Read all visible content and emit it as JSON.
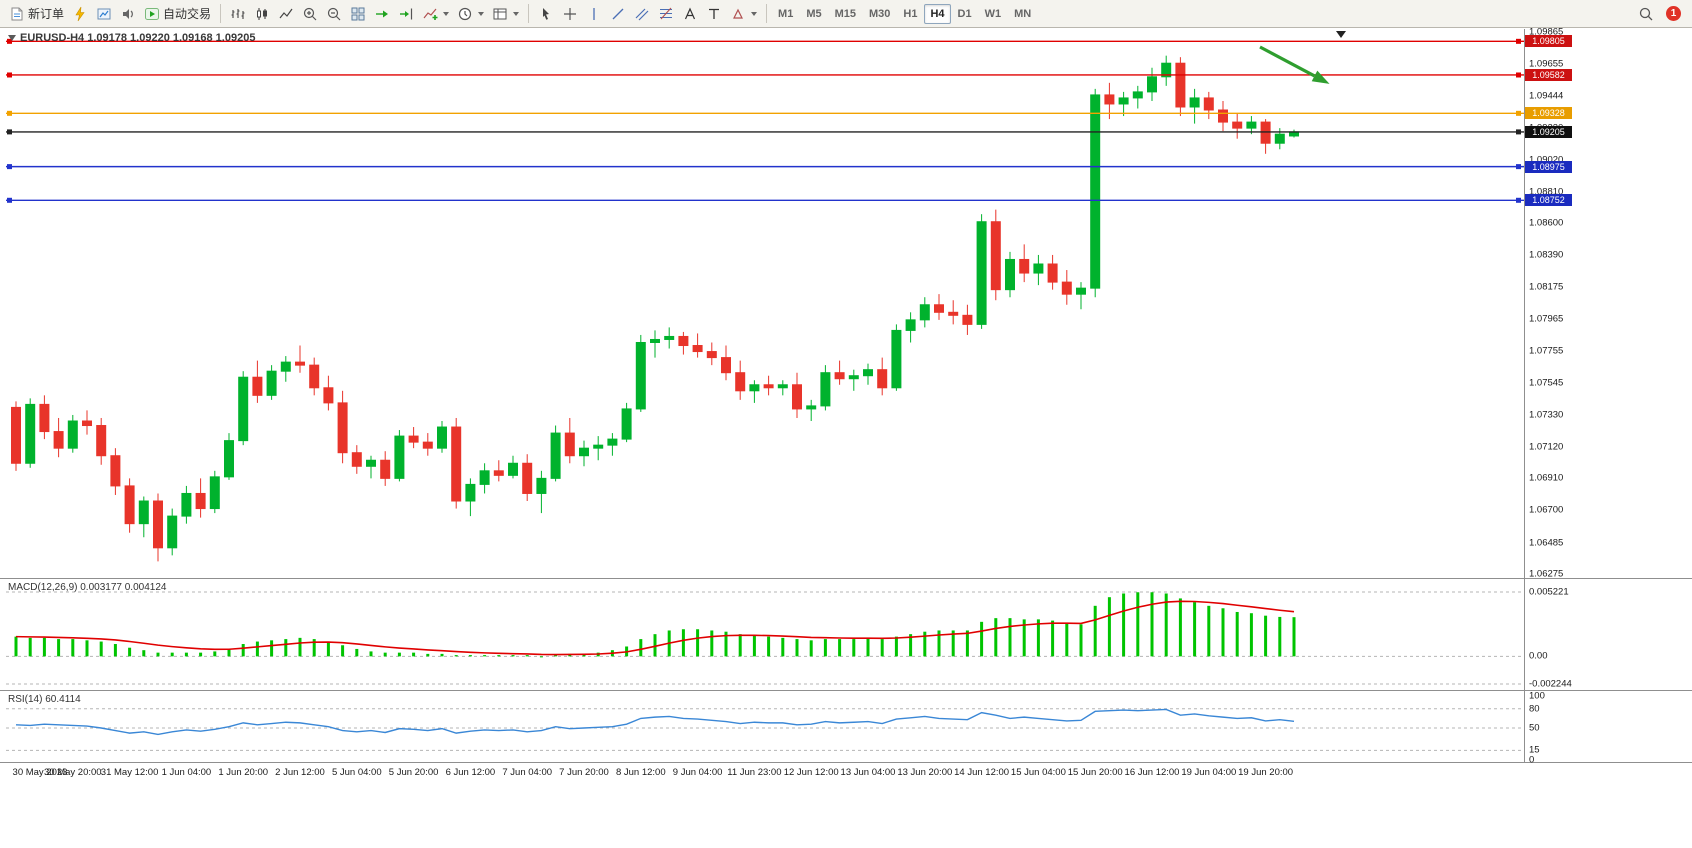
{
  "toolbar": {
    "new_order_label": "新订单",
    "auto_trading_label": "自动交易",
    "timeframes": [
      "M1",
      "M5",
      "M15",
      "M30",
      "H1",
      "H4",
      "D1",
      "W1",
      "MN"
    ],
    "active_timeframe": "H4",
    "notification_count": "1"
  },
  "chart": {
    "title": "EURUSD-H4 1.09178 1.09220 1.09168 1.09205",
    "symbol": "EURUSD",
    "timeframe": "H4",
    "open": "1.09178",
    "high": "1.09220",
    "low": "1.09168",
    "close": "1.09205"
  },
  "price_axis": {
    "labels": [
      "1.09865",
      "1.09655",
      "1.09444",
      "1.09230",
      "1.09020",
      "1.08810",
      "1.08600",
      "1.08390",
      "1.08175",
      "1.07965",
      "1.07755",
      "1.07545",
      "1.07330",
      "1.07120",
      "1.06910",
      "1.06700",
      "1.06485",
      "1.06275"
    ]
  },
  "hlines": [
    {
      "label": "1.09805",
      "value": 1.09805,
      "line_color": "#e00000",
      "tag_color": "#cc1111"
    },
    {
      "label": "1.09582",
      "value": 1.09582,
      "line_color": "#e00000",
      "tag_color": "#cc1111"
    },
    {
      "label": "1.09328",
      "value": 1.09328,
      "line_color": "#f2a200",
      "tag_color": "#e89d00"
    },
    {
      "label": "1.09205",
      "value": 1.09205,
      "line_color": "#222222",
      "tag_color": "#101010"
    },
    {
      "label": "1.08975",
      "value": 1.08975,
      "line_color": "#2233cc",
      "tag_color": "#1a2bbf"
    },
    {
      "label": "1.08752",
      "value": 1.08752,
      "line_color": "#2233cc",
      "tag_color": "#1a2bbf"
    }
  ],
  "arrow": {
    "color": "#2f9e2f"
  },
  "macd": {
    "label": "MACD(12,26,9) 0.003177 0.004124",
    "axis_labels": [
      "0.005221",
      "0.00",
      "-0.002244"
    ],
    "axis_values": [
      0.005221,
      0,
      -0.002244
    ],
    "histogram_color": "#00c400",
    "signal_color": "#e00000",
    "values": [
      0.0016,
      0.0015,
      0.0015,
      0.0014,
      0.0014,
      0.0013,
      0.0012,
      0.001,
      0.0007,
      0.0005,
      0.0003,
      0.0003,
      0.0003,
      0.0003,
      0.0004,
      0.0006,
      0.001,
      0.0012,
      0.0013,
      0.0014,
      0.0015,
      0.0014,
      0.0012,
      0.0009,
      0.0006,
      0.0004,
      0.0003,
      0.0003,
      0.0003,
      0.0002,
      0.0002,
      0.0001,
      0.0001,
      0.0001,
      0.0001,
      0.0001,
      0.0001,
      0.0,
      0.0001,
      0.0002,
      0.0002,
      0.0003,
      0.0005,
      0.0008,
      0.0014,
      0.0018,
      0.0021,
      0.0022,
      0.0022,
      0.0021,
      0.002,
      0.0018,
      0.0017,
      0.0016,
      0.0015,
      0.0014,
      0.0013,
      0.0014,
      0.0014,
      0.0014,
      0.0015,
      0.0014,
      0.0016,
      0.0018,
      0.002,
      0.0021,
      0.0021,
      0.0021,
      0.0028,
      0.0031,
      0.0031,
      0.003,
      0.003,
      0.0029,
      0.0027,
      0.0026,
      0.0041,
      0.0048,
      0.0051,
      0.0052,
      0.0052,
      0.0051,
      0.0047,
      0.0044,
      0.0041,
      0.0039,
      0.0036,
      0.0035,
      0.0033,
      0.0032,
      0.003177
    ]
  },
  "rsi": {
    "label": "RSI(14) 60.4114",
    "axis_labels": [
      "100",
      "80",
      "50",
      "15",
      "0"
    ],
    "axis_values": [
      100,
      80,
      50,
      15,
      0
    ],
    "levels": [
      80,
      50,
      15
    ],
    "line_color": "#3a87d6",
    "values": [
      55,
      54,
      56,
      55,
      54,
      53,
      50,
      46,
      42,
      44,
      40,
      44,
      47,
      45,
      48,
      52,
      58,
      55,
      57,
      59,
      58,
      55,
      52,
      46,
      44,
      46,
      43,
      49,
      48,
      46,
      49,
      42,
      45,
      47,
      46,
      47,
      44,
      46,
      52,
      49,
      50,
      51,
      52,
      56,
      65,
      67,
      68,
      65,
      64,
      62,
      60,
      57,
      59,
      58,
      58,
      55,
      56,
      60,
      58,
      59,
      60,
      57,
      64,
      66,
      68,
      65,
      64,
      63,
      74,
      70,
      65,
      67,
      65,
      63,
      61,
      62,
      76,
      77,
      78,
      77,
      78,
      79,
      70,
      72,
      69,
      67,
      65,
      66,
      61,
      63,
      60.41
    ]
  },
  "time_axis": [
    "30 May 2023",
    "30 May 20:00",
    "31 May 12:00",
    "1 Jun 04:00",
    "1 Jun 20:00",
    "2 Jun 12:00",
    "5 Jun 04:00",
    "5 Jun 20:00",
    "6 Jun 12:00",
    "7 Jun 04:00",
    "7 Jun 20:00",
    "8 Jun 12:00",
    "9 Jun 04:00",
    "11 Jun 23:00",
    "12 Jun 12:00",
    "13 Jun 04:00",
    "13 Jun 20:00",
    "14 Jun 12:00",
    "15 Jun 04:00",
    "15 Jun 20:00",
    "16 Jun 12:00",
    "19 Jun 04:00",
    "19 Jun 20:00"
  ],
  "chart_data": {
    "type": "candlestick",
    "title": "EURUSD H4",
    "ylim": [
      1.0625,
      1.0988
    ],
    "colors": {
      "up": "#00b22d",
      "down": "#e8342a"
    },
    "candles": [
      [
        1.0738,
        1.0742,
        1.0696,
        1.0701
      ],
      [
        1.0701,
        1.0744,
        1.0698,
        1.074
      ],
      [
        1.074,
        1.0746,
        1.0717,
        1.0722
      ],
      [
        1.0722,
        1.0731,
        1.0705,
        1.0711
      ],
      [
        1.0711,
        1.0733,
        1.0708,
        1.0729
      ],
      [
        1.0729,
        1.0736,
        1.072,
        1.0726
      ],
      [
        1.0726,
        1.0731,
        1.07,
        1.0706
      ],
      [
        1.0706,
        1.0711,
        1.068,
        1.0686
      ],
      [
        1.0686,
        1.0691,
        1.0655,
        1.0661
      ],
      [
        1.0661,
        1.0679,
        1.0652,
        1.0676
      ],
      [
        1.0676,
        1.0681,
        1.0636,
        1.0645
      ],
      [
        1.0645,
        1.0671,
        1.064,
        1.0666
      ],
      [
        1.0666,
        1.0686,
        1.0661,
        1.0681
      ],
      [
        1.0681,
        1.0691,
        1.0665,
        1.0671
      ],
      [
        1.0671,
        1.0696,
        1.0668,
        1.0692
      ],
      [
        1.0692,
        1.0721,
        1.069,
        1.0716
      ],
      [
        1.0716,
        1.0762,
        1.0713,
        1.0758
      ],
      [
        1.0758,
        1.0769,
        1.0741,
        1.0746
      ],
      [
        1.0746,
        1.0766,
        1.0743,
        1.0762
      ],
      [
        1.0762,
        1.0772,
        1.0755,
        1.0768
      ],
      [
        1.0768,
        1.0779,
        1.0761,
        1.0766
      ],
      [
        1.0766,
        1.0771,
        1.0746,
        1.0751
      ],
      [
        1.0751,
        1.0759,
        1.0736,
        1.0741
      ],
      [
        1.0741,
        1.0749,
        1.0701,
        1.0708
      ],
      [
        1.0708,
        1.0713,
        1.0694,
        1.0699
      ],
      [
        1.0699,
        1.0706,
        1.0691,
        1.0703
      ],
      [
        1.0703,
        1.0709,
        1.0686,
        1.0691
      ],
      [
        1.0691,
        1.0723,
        1.0689,
        1.0719
      ],
      [
        1.0719,
        1.0725,
        1.0711,
        1.0715
      ],
      [
        1.0715,
        1.0721,
        1.0706,
        1.0711
      ],
      [
        1.0711,
        1.0729,
        1.0708,
        1.0725
      ],
      [
        1.0725,
        1.0731,
        1.0671,
        1.0676
      ],
      [
        1.0676,
        1.0691,
        1.0666,
        1.0687
      ],
      [
        1.0687,
        1.0701,
        1.0681,
        1.0696
      ],
      [
        1.0696,
        1.0703,
        1.0689,
        1.0693
      ],
      [
        1.0693,
        1.0706,
        1.0691,
        1.0701
      ],
      [
        1.0701,
        1.0707,
        1.0676,
        1.0681
      ],
      [
        1.0681,
        1.0696,
        1.0668,
        1.0691
      ],
      [
        1.0691,
        1.0726,
        1.0689,
        1.0721
      ],
      [
        1.0721,
        1.0731,
        1.0701,
        1.0706
      ],
      [
        1.0706,
        1.0716,
        1.0699,
        1.0711
      ],
      [
        1.0711,
        1.0719,
        1.0703,
        1.0713
      ],
      [
        1.0713,
        1.0721,
        1.0706,
        1.0717
      ],
      [
        1.0717,
        1.0741,
        1.0715,
        1.0737
      ],
      [
        1.0737,
        1.0786,
        1.0735,
        1.0781
      ],
      [
        1.0781,
        1.0789,
        1.0771,
        1.0783
      ],
      [
        1.0783,
        1.0791,
        1.0777,
        1.0785
      ],
      [
        1.0785,
        1.0788,
        1.0773,
        1.0779
      ],
      [
        1.0779,
        1.0787,
        1.0771,
        1.0775
      ],
      [
        1.0775,
        1.0781,
        1.0766,
        1.0771
      ],
      [
        1.0771,
        1.0779,
        1.0756,
        1.0761
      ],
      [
        1.0761,
        1.0769,
        1.0743,
        1.0749
      ],
      [
        1.0749,
        1.0756,
        1.0741,
        1.0753
      ],
      [
        1.0753,
        1.0759,
        1.0746,
        1.0751
      ],
      [
        1.0751,
        1.0756,
        1.0746,
        1.0753
      ],
      [
        1.0753,
        1.0761,
        1.0731,
        1.0737
      ],
      [
        1.0737,
        1.0743,
        1.0729,
        1.0739
      ],
      [
        1.0739,
        1.0766,
        1.0736,
        1.0761
      ],
      [
        1.0761,
        1.0769,
        1.0753,
        1.0757
      ],
      [
        1.0757,
        1.0763,
        1.0749,
        1.0759
      ],
      [
        1.0759,
        1.0767,
        1.0753,
        1.0763
      ],
      [
        1.0763,
        1.0771,
        1.0746,
        1.0751
      ],
      [
        1.0751,
        1.0793,
        1.0749,
        1.0789
      ],
      [
        1.0789,
        1.0801,
        1.0781,
        1.0796
      ],
      [
        1.0796,
        1.0811,
        1.0791,
        1.0806
      ],
      [
        1.0806,
        1.0813,
        1.0796,
        1.0801
      ],
      [
        1.0801,
        1.0809,
        1.0793,
        1.0799
      ],
      [
        1.0799,
        1.0806,
        1.0786,
        1.0793
      ],
      [
        1.0793,
        1.0866,
        1.079,
        1.0861
      ],
      [
        1.0861,
        1.0869,
        1.0809,
        1.0816
      ],
      [
        1.0816,
        1.0841,
        1.0811,
        1.0836
      ],
      [
        1.0836,
        1.0846,
        1.0821,
        1.0827
      ],
      [
        1.0827,
        1.0839,
        1.0819,
        1.0833
      ],
      [
        1.0833,
        1.0839,
        1.0816,
        1.0821
      ],
      [
        1.0821,
        1.0829,
        1.0806,
        1.0813
      ],
      [
        1.0813,
        1.0821,
        1.0803,
        1.0817
      ],
      [
        1.0817,
        1.0949,
        1.0811,
        1.0945
      ],
      [
        1.0945,
        1.0953,
        1.0929,
        1.0939
      ],
      [
        1.0939,
        1.0947,
        1.0931,
        1.0943
      ],
      [
        1.0943,
        1.0951,
        1.0936,
        1.0947
      ],
      [
        1.0947,
        1.0963,
        1.0941,
        1.0957
      ],
      [
        1.0957,
        1.0971,
        1.0951,
        1.0966
      ],
      [
        1.0966,
        1.097,
        1.0931,
        1.0937
      ],
      [
        1.0937,
        1.0949,
        1.0926,
        1.0943
      ],
      [
        1.0943,
        1.0947,
        1.0929,
        1.0935
      ],
      [
        1.0935,
        1.0941,
        1.0921,
        1.0927
      ],
      [
        1.0927,
        1.0933,
        1.0916,
        1.0923
      ],
      [
        1.0923,
        1.0931,
        1.0919,
        1.0927
      ],
      [
        1.0927,
        1.0929,
        1.0906,
        1.0913
      ],
      [
        1.0913,
        1.0923,
        1.0909,
        1.0919
      ],
      [
        1.09178,
        1.0922,
        1.09168,
        1.09205
      ]
    ]
  }
}
